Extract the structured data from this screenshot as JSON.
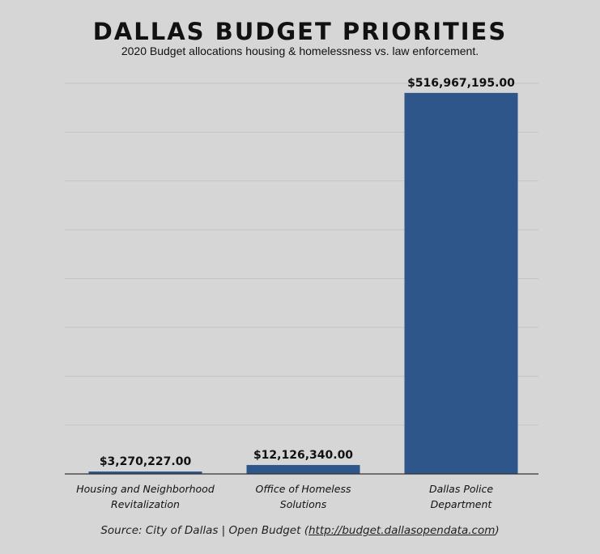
{
  "chart_data": {
    "type": "bar",
    "title": "DALLAS BUDGET PRIORITIES",
    "subtitle": "2020 Budget allocations housing & homelessness vs. law enforcement.",
    "categories": [
      [
        "Housing and Neighborhood",
        "Revitalization"
      ],
      [
        "Office of Homeless",
        "Solutions"
      ],
      [
        "Dallas Police",
        "Department"
      ]
    ],
    "values": [
      3270227.0,
      12126340.0,
      516967195.0
    ],
    "value_labels": [
      "$3,270,227.00",
      "$12,126,340.00",
      "$516,967,195.00"
    ],
    "ylim": [
      0,
      530000000
    ],
    "grid": true,
    "bar_color": "#2e568a",
    "source_prefix": "Source: City of Dallas | Open Budget (",
    "source_url": "http://budget.dallasopendata.com",
    "source_suffix": ")"
  }
}
